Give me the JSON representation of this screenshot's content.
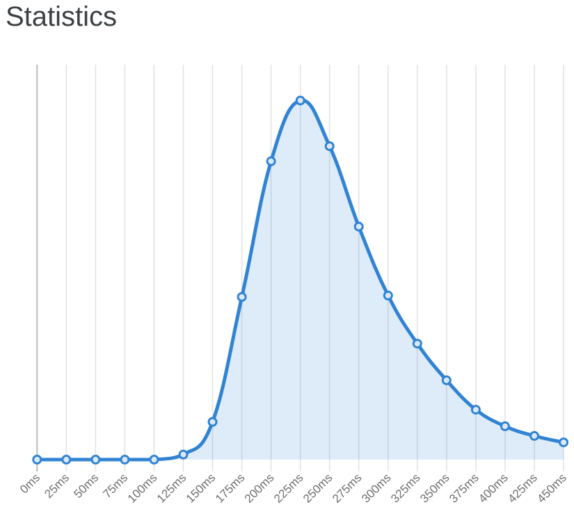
{
  "page": {
    "title": "Statistics"
  },
  "chart_data": {
    "type": "area",
    "title": "Statistics",
    "xlabel": "",
    "ylabel": "",
    "x_labels": [
      "0ms",
      "25ms",
      "50ms",
      "75ms",
      "100ms",
      "125ms",
      "150ms",
      "175ms",
      "200ms",
      "225ms",
      "250ms",
      "275ms",
      "300ms",
      "325ms",
      "350ms",
      "375ms",
      "400ms",
      "425ms",
      "450ms"
    ],
    "values": [
      0,
      0,
      0,
      0,
      0,
      1.4,
      10.5,
      45.3,
      83.1,
      100,
      87.3,
      64.9,
      45.7,
      32.3,
      22.1,
      13.9,
      9.3,
      6.6,
      4.8
    ],
    "ylim": [
      0,
      110
    ],
    "grid": "vertical-only",
    "legend": "none",
    "y_axis_labels": "none",
    "marker": "open-circle",
    "colors": {
      "line": "#3183d3",
      "fill": "rgba(49,131,211,0.16)",
      "marker_fill": "rgba(235,243,251,0.9)",
      "grid": "#e3e3e3",
      "grid_first": "#b9b9b9",
      "tick_label": "#6e6e6e",
      "title": "#3c4043"
    }
  }
}
